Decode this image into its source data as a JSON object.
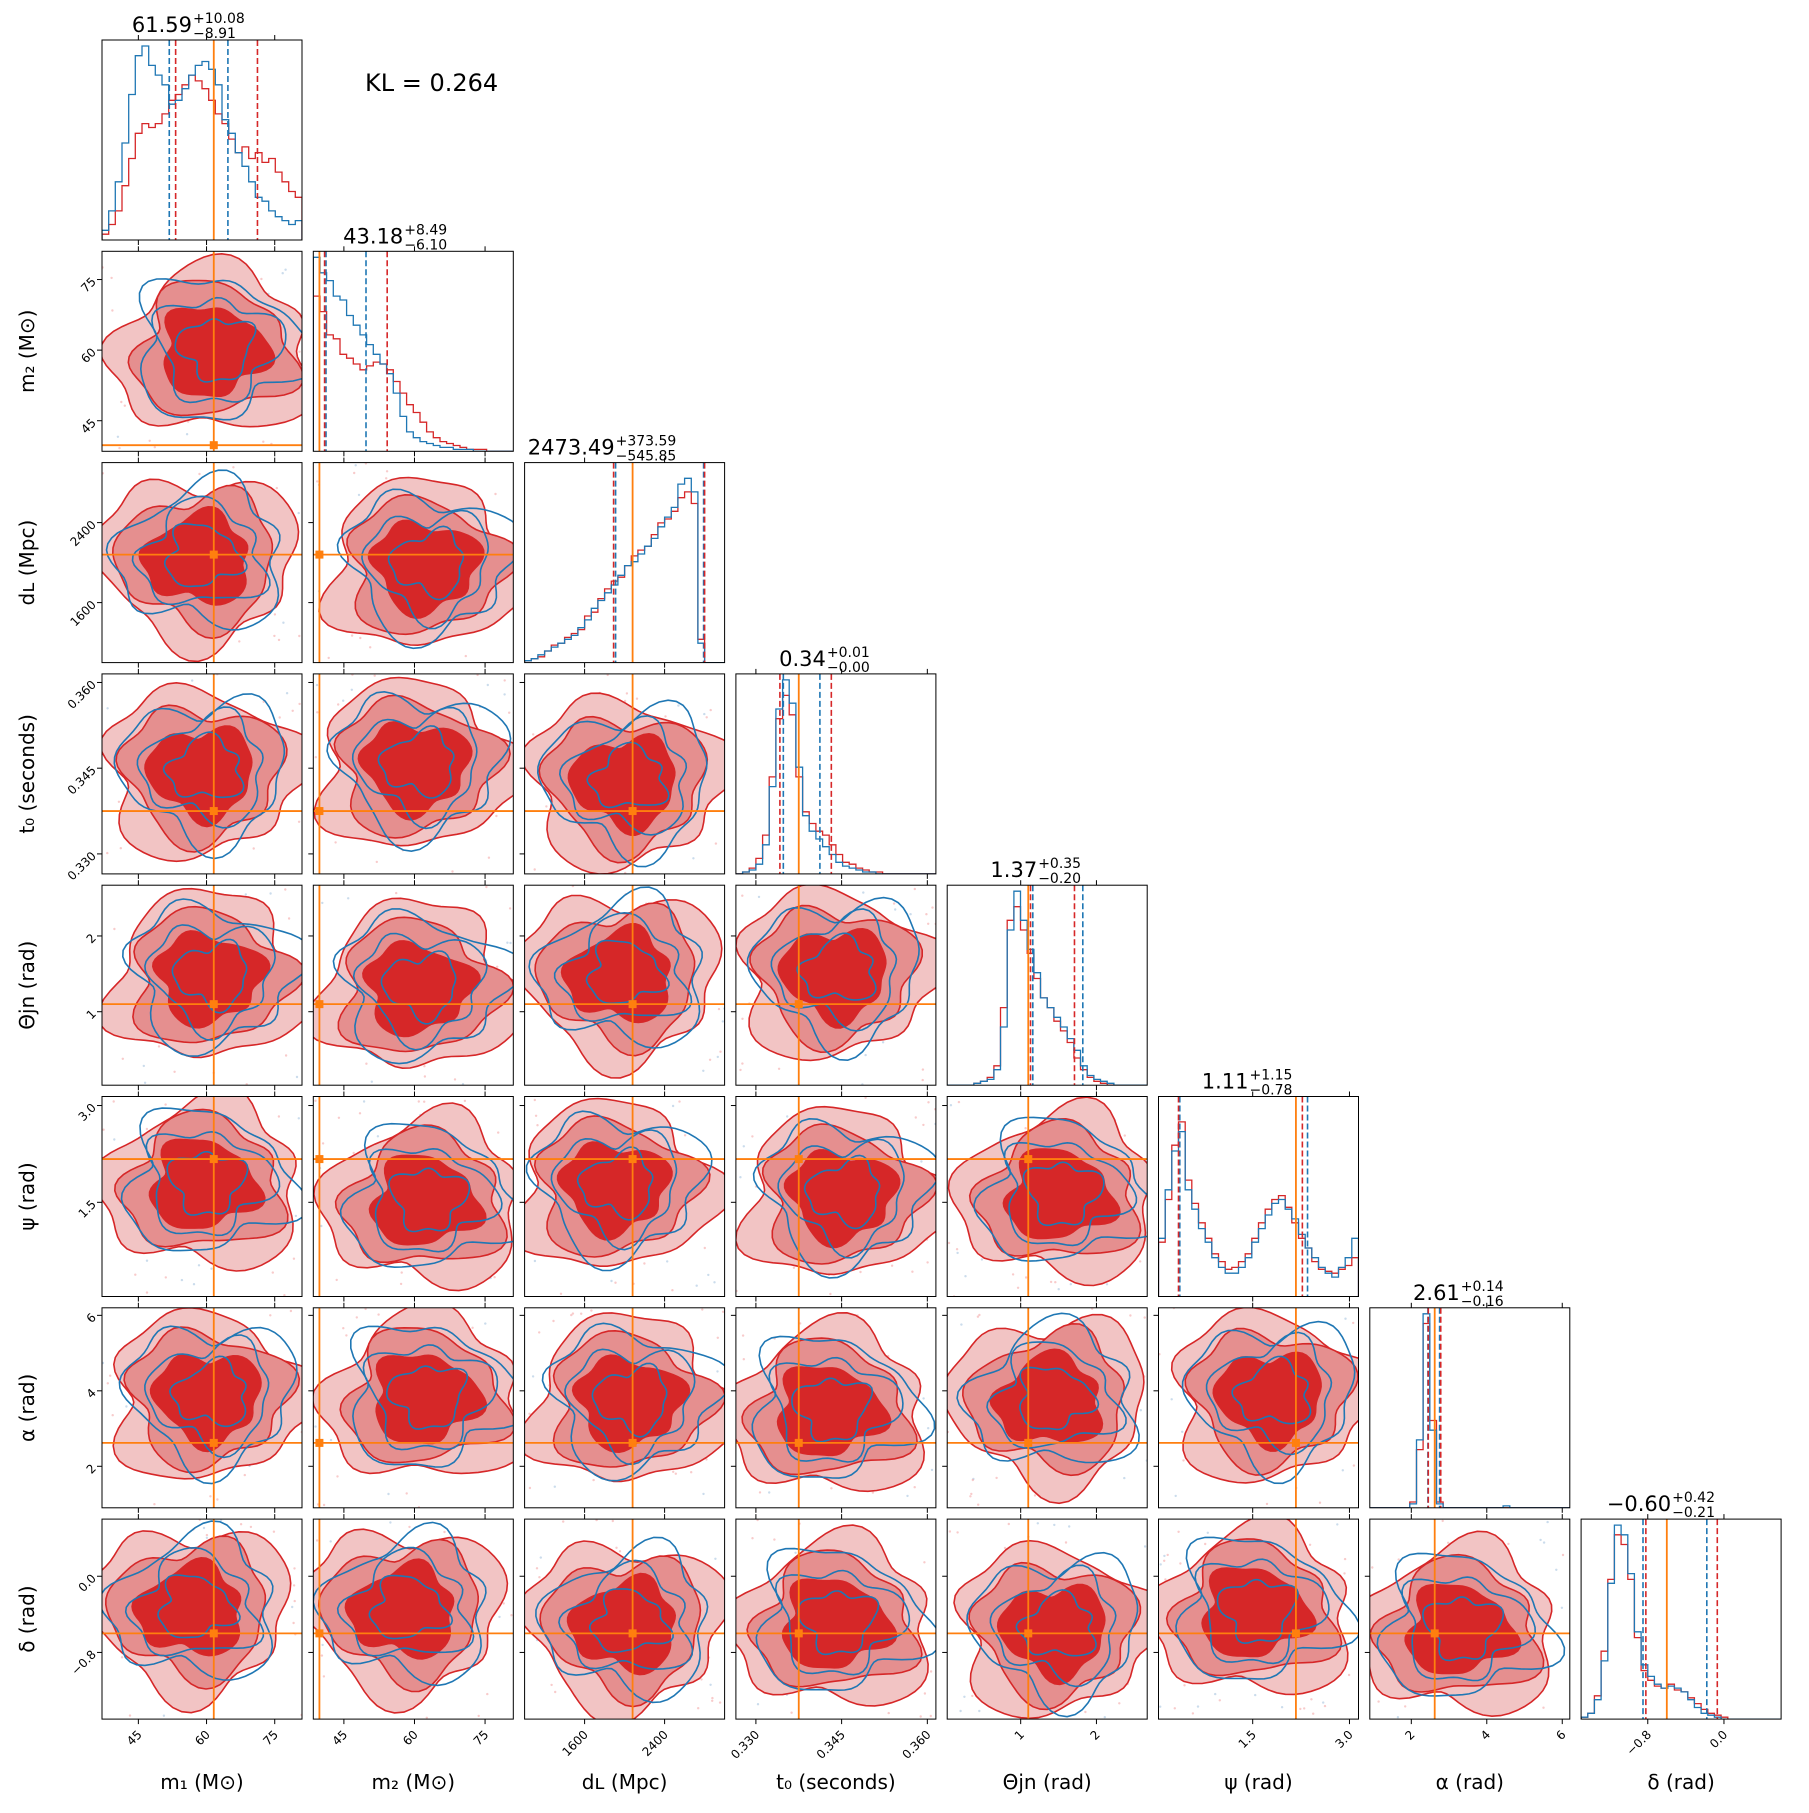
{
  "annotation": {
    "kl": "KL = 0.264"
  },
  "colors": {
    "series_a": "#1f77b4",
    "series_b": "#d62728",
    "truth": "#ff7f0e"
  },
  "chart_data": {
    "type": "corner",
    "params": [
      {
        "key": "m1",
        "label": "m₁ (M⊙)",
        "range": [
          37,
          81
        ],
        "ticks": [
          45,
          60,
          75
        ],
        "tick_labels": [
          "45",
          "60",
          "75"
        ],
        "truth": 61.59,
        "title": {
          "median": "61.59",
          "plus": "+10.08",
          "minus": "−8.91"
        },
        "quantiles_a": [
          51.8,
          64.7
        ],
        "quantiles_b": [
          53.2,
          71.2
        ]
      },
      {
        "key": "m2",
        "label": "m₂ (M⊙)",
        "range": [
          38.5,
          81
        ],
        "ticks": [
          45,
          60,
          75
        ],
        "tick_labels": [
          "45",
          "60",
          "75"
        ],
        "truth": 39.8,
        "title": {
          "median": "43.18",
          "plus": "+8.49",
          "minus": "−6.10"
        },
        "quantiles_a": [
          41.2,
          49.7
        ],
        "quantiles_b": [
          40.9,
          54.2
        ]
      },
      {
        "key": "dL",
        "label": "dʟ (Mpc)",
        "range": [
          1000,
          3000
        ],
        "ticks": [
          1600,
          2400
        ],
        "tick_labels": [
          "1600",
          "2400"
        ],
        "truth": 2080,
        "title": {
          "median": "2473.49",
          "plus": "+373.59",
          "minus": "−545.85"
        },
        "quantiles_a": [
          1910,
          2790
        ],
        "quantiles_b": [
          1890,
          2800
        ]
      },
      {
        "key": "t0",
        "label": "t₀ (seconds)",
        "range": [
          0.3265,
          0.3615
        ],
        "ticks": [
          0.33,
          0.345,
          0.36
        ],
        "tick_labels": [
          "0.330",
          "0.345",
          "0.360"
        ],
        "truth": 0.3375,
        "title": {
          "median": "0.34",
          "plus": "+0.01",
          "minus": "−0.00"
        },
        "quantiles_a": [
          0.3348,
          0.3412
        ],
        "quantiles_b": [
          0.3342,
          0.3432
        ]
      },
      {
        "key": "theta_jn",
        "label": "Θjn (rad)",
        "range": [
          0.03,
          2.67
        ],
        "ticks": [
          1,
          2
        ],
        "tick_labels": [
          "1",
          "2"
        ],
        "truth": 1.1,
        "title": {
          "median": "1.37",
          "plus": "+0.35",
          "minus": "−0.20"
        },
        "quantiles_a": [
          1.16,
          1.82
        ],
        "quantiles_b": [
          1.13,
          1.71
        ]
      },
      {
        "key": "psi",
        "label": "ψ (rad)",
        "range": [
          0.04,
          3.14
        ],
        "ticks": [
          1.5,
          3.0
        ],
        "tick_labels": [
          "1.5",
          "3.0"
        ],
        "truth": 2.17,
        "title": {
          "median": "1.11",
          "plus": "+1.15",
          "minus": "−0.78"
        },
        "quantiles_a": [
          0.37,
          2.35
        ],
        "quantiles_b": [
          0.35,
          2.27
        ]
      },
      {
        "key": "alpha",
        "label": "α (rad)",
        "range": [
          0.9,
          6.2
        ],
        "ticks": [
          2,
          4,
          6
        ],
        "tick_labels": [
          "2",
          "4",
          "6"
        ],
        "truth": 2.62,
        "title": {
          "median": "2.61",
          "plus": "+0.14",
          "minus": "−0.16"
        },
        "quantiles_a": [
          2.44,
          2.75
        ],
        "quantiles_b": [
          2.45,
          2.78
        ]
      },
      {
        "key": "delta",
        "label": "δ (rad)",
        "range": [
          -1.5,
          0.6
        ],
        "ticks": [
          -0.8,
          0.0
        ],
        "tick_labels": [
          "−0.8",
          "0.0"
        ],
        "truth": -0.6,
        "title": {
          "median": "−0.60",
          "plus": "+0.42",
          "minus": "−0.21"
        },
        "quantiles_a": [
          -0.85,
          -0.18
        ],
        "quantiles_b": [
          -0.82,
          -0.07
        ]
      }
    ],
    "series": [
      {
        "color": "#1f77b4"
      },
      {
        "color": "#d62728"
      }
    ],
    "marginals": [
      {
        "a": [
          0.05,
          0.15,
          0.3,
          0.5,
          0.75,
          0.95,
          1.0,
          0.9,
          0.85,
          0.8,
          0.7,
          0.72,
          0.78,
          0.85,
          0.9,
          0.92,
          0.88,
          0.8,
          0.62,
          0.55,
          0.45,
          0.38,
          0.3,
          0.22,
          0.2,
          0.15,
          0.12,
          0.1,
          0.08,
          0.1
        ],
        "b": [
          0.03,
          0.08,
          0.15,
          0.28,
          0.42,
          0.55,
          0.6,
          0.58,
          0.6,
          0.65,
          0.72,
          0.75,
          0.8,
          0.85,
          0.82,
          0.78,
          0.72,
          0.65,
          0.6,
          0.52,
          0.45,
          0.48,
          0.42,
          0.45,
          0.4,
          0.42,
          0.35,
          0.3,
          0.25,
          0.22
        ]
      },
      {
        "a": [
          1.0,
          0.92,
          0.88,
          0.8,
          0.78,
          0.7,
          0.65,
          0.6,
          0.55,
          0.5,
          0.45,
          0.4,
          0.3,
          0.18,
          0.1,
          0.07,
          0.05,
          0.04,
          0.03,
          0.02,
          0.02,
          0.01,
          0.01,
          0.01,
          0.0,
          0.0,
          0.0,
          0.0,
          0.0,
          0.0
        ],
        "b": [
          0.8,
          0.72,
          0.6,
          0.58,
          0.5,
          0.48,
          0.45,
          0.42,
          0.44,
          0.46,
          0.45,
          0.42,
          0.36,
          0.3,
          0.24,
          0.2,
          0.15,
          0.1,
          0.07,
          0.05,
          0.04,
          0.03,
          0.02,
          0.01,
          0.01,
          0.01,
          0.0,
          0.0,
          0.0,
          0.0
        ]
      },
      {
        "a": [
          0.01,
          0.02,
          0.04,
          0.06,
          0.08,
          0.1,
          0.12,
          0.14,
          0.18,
          0.22,
          0.28,
          0.32,
          0.36,
          0.4,
          0.45,
          0.5,
          0.52,
          0.56,
          0.6,
          0.64,
          0.7,
          0.75,
          0.8,
          0.92,
          0.95,
          0.88,
          0.1,
          0.0,
          0.0,
          0.0
        ],
        "b": [
          0.01,
          0.02,
          0.03,
          0.06,
          0.09,
          0.1,
          0.13,
          0.15,
          0.17,
          0.24,
          0.26,
          0.33,
          0.38,
          0.42,
          0.44,
          0.5,
          0.55,
          0.58,
          0.6,
          0.66,
          0.72,
          0.74,
          0.78,
          0.85,
          0.88,
          0.82,
          0.12,
          0.0,
          0.0,
          0.0
        ]
      },
      {
        "a": [
          0.0,
          0.01,
          0.02,
          0.05,
          0.15,
          0.45,
          0.85,
          1.0,
          0.88,
          0.55,
          0.3,
          0.22,
          0.18,
          0.14,
          0.1,
          0.06,
          0.04,
          0.03,
          0.02,
          0.01,
          0.01,
          0.0,
          0.0,
          0.0,
          0.0,
          0.0,
          0.0,
          0.0,
          0.0,
          0.0
        ],
        "b": [
          0.0,
          0.01,
          0.03,
          0.08,
          0.2,
          0.5,
          0.8,
          0.92,
          0.82,
          0.5,
          0.32,
          0.26,
          0.22,
          0.2,
          0.15,
          0.1,
          0.06,
          0.05,
          0.03,
          0.02,
          0.01,
          0.01,
          0.0,
          0.0,
          0.0,
          0.0,
          0.0,
          0.0,
          0.0,
          0.0
        ]
      },
      {
        "a": [
          0.0,
          0.0,
          0.0,
          0.0,
          0.01,
          0.02,
          0.03,
          0.08,
          0.3,
          0.8,
          1.0,
          0.85,
          0.7,
          0.58,
          0.45,
          0.4,
          0.35,
          0.3,
          0.24,
          0.18,
          0.1,
          0.05,
          0.03,
          0.02,
          0.01,
          0.0,
          0.0,
          0.0,
          0.0,
          0.0
        ],
        "b": [
          0.0,
          0.0,
          0.0,
          0.0,
          0.01,
          0.02,
          0.04,
          0.1,
          0.4,
          0.85,
          0.92,
          0.8,
          0.68,
          0.55,
          0.45,
          0.4,
          0.33,
          0.28,
          0.22,
          0.14,
          0.08,
          0.04,
          0.02,
          0.01,
          0.0,
          0.0,
          0.0,
          0.0,
          0.0,
          0.0
        ]
      },
      {
        "a": [
          0.3,
          0.55,
          0.75,
          0.85,
          0.55,
          0.45,
          0.35,
          0.28,
          0.2,
          0.15,
          0.12,
          0.12,
          0.15,
          0.2,
          0.28,
          0.35,
          0.42,
          0.48,
          0.5,
          0.45,
          0.4,
          0.32,
          0.25,
          0.2,
          0.15,
          0.12,
          0.1,
          0.15,
          0.2,
          0.3
        ],
        "b": [
          0.28,
          0.5,
          0.78,
          0.9,
          0.6,
          0.48,
          0.38,
          0.3,
          0.22,
          0.18,
          0.14,
          0.15,
          0.18,
          0.22,
          0.3,
          0.38,
          0.45,
          0.5,
          0.52,
          0.46,
          0.38,
          0.3,
          0.25,
          0.18,
          0.14,
          0.13,
          0.12,
          0.14,
          0.16,
          0.2
        ]
      },
      {
        "a": [
          0.0,
          0.0,
          0.0,
          0.0,
          0.0,
          0.0,
          0.02,
          0.35,
          1.0,
          0.4,
          0.02,
          0.0,
          0.0,
          0.0,
          0.0,
          0.0,
          0.0,
          0.0,
          0.0,
          0.0,
          0.01,
          0.0,
          0.0,
          0.0,
          0.0,
          0.0,
          0.0,
          0.0,
          0.0,
          0.0
        ],
        "b": [
          0.0,
          0.0,
          0.0,
          0.0,
          0.0,
          0.0,
          0.03,
          0.3,
          0.95,
          0.45,
          0.03,
          0.0,
          0.0,
          0.0,
          0.0,
          0.0,
          0.0,
          0.0,
          0.0,
          0.0,
          0.0,
          0.0,
          0.0,
          0.0,
          0.0,
          0.0,
          0.0,
          0.0,
          0.0,
          0.0
        ]
      },
      {
        "a": [
          0.01,
          0.03,
          0.1,
          0.3,
          0.7,
          1.0,
          0.95,
          0.75,
          0.45,
          0.28,
          0.22,
          0.18,
          0.16,
          0.17,
          0.16,
          0.14,
          0.1,
          0.06,
          0.03,
          0.02,
          0.01,
          0.0,
          0.0,
          0.0,
          0.0,
          0.0,
          0.0,
          0.0,
          0.0,
          0.0
        ],
        "b": [
          0.01,
          0.03,
          0.12,
          0.35,
          0.72,
          0.95,
          0.9,
          0.72,
          0.42,
          0.25,
          0.2,
          0.17,
          0.16,
          0.18,
          0.15,
          0.14,
          0.11,
          0.08,
          0.05,
          0.03,
          0.02,
          0.01,
          0.0,
          0.0,
          0.0,
          0.0,
          0.0,
          0.0,
          0.0,
          0.0
        ]
      }
    ]
  }
}
